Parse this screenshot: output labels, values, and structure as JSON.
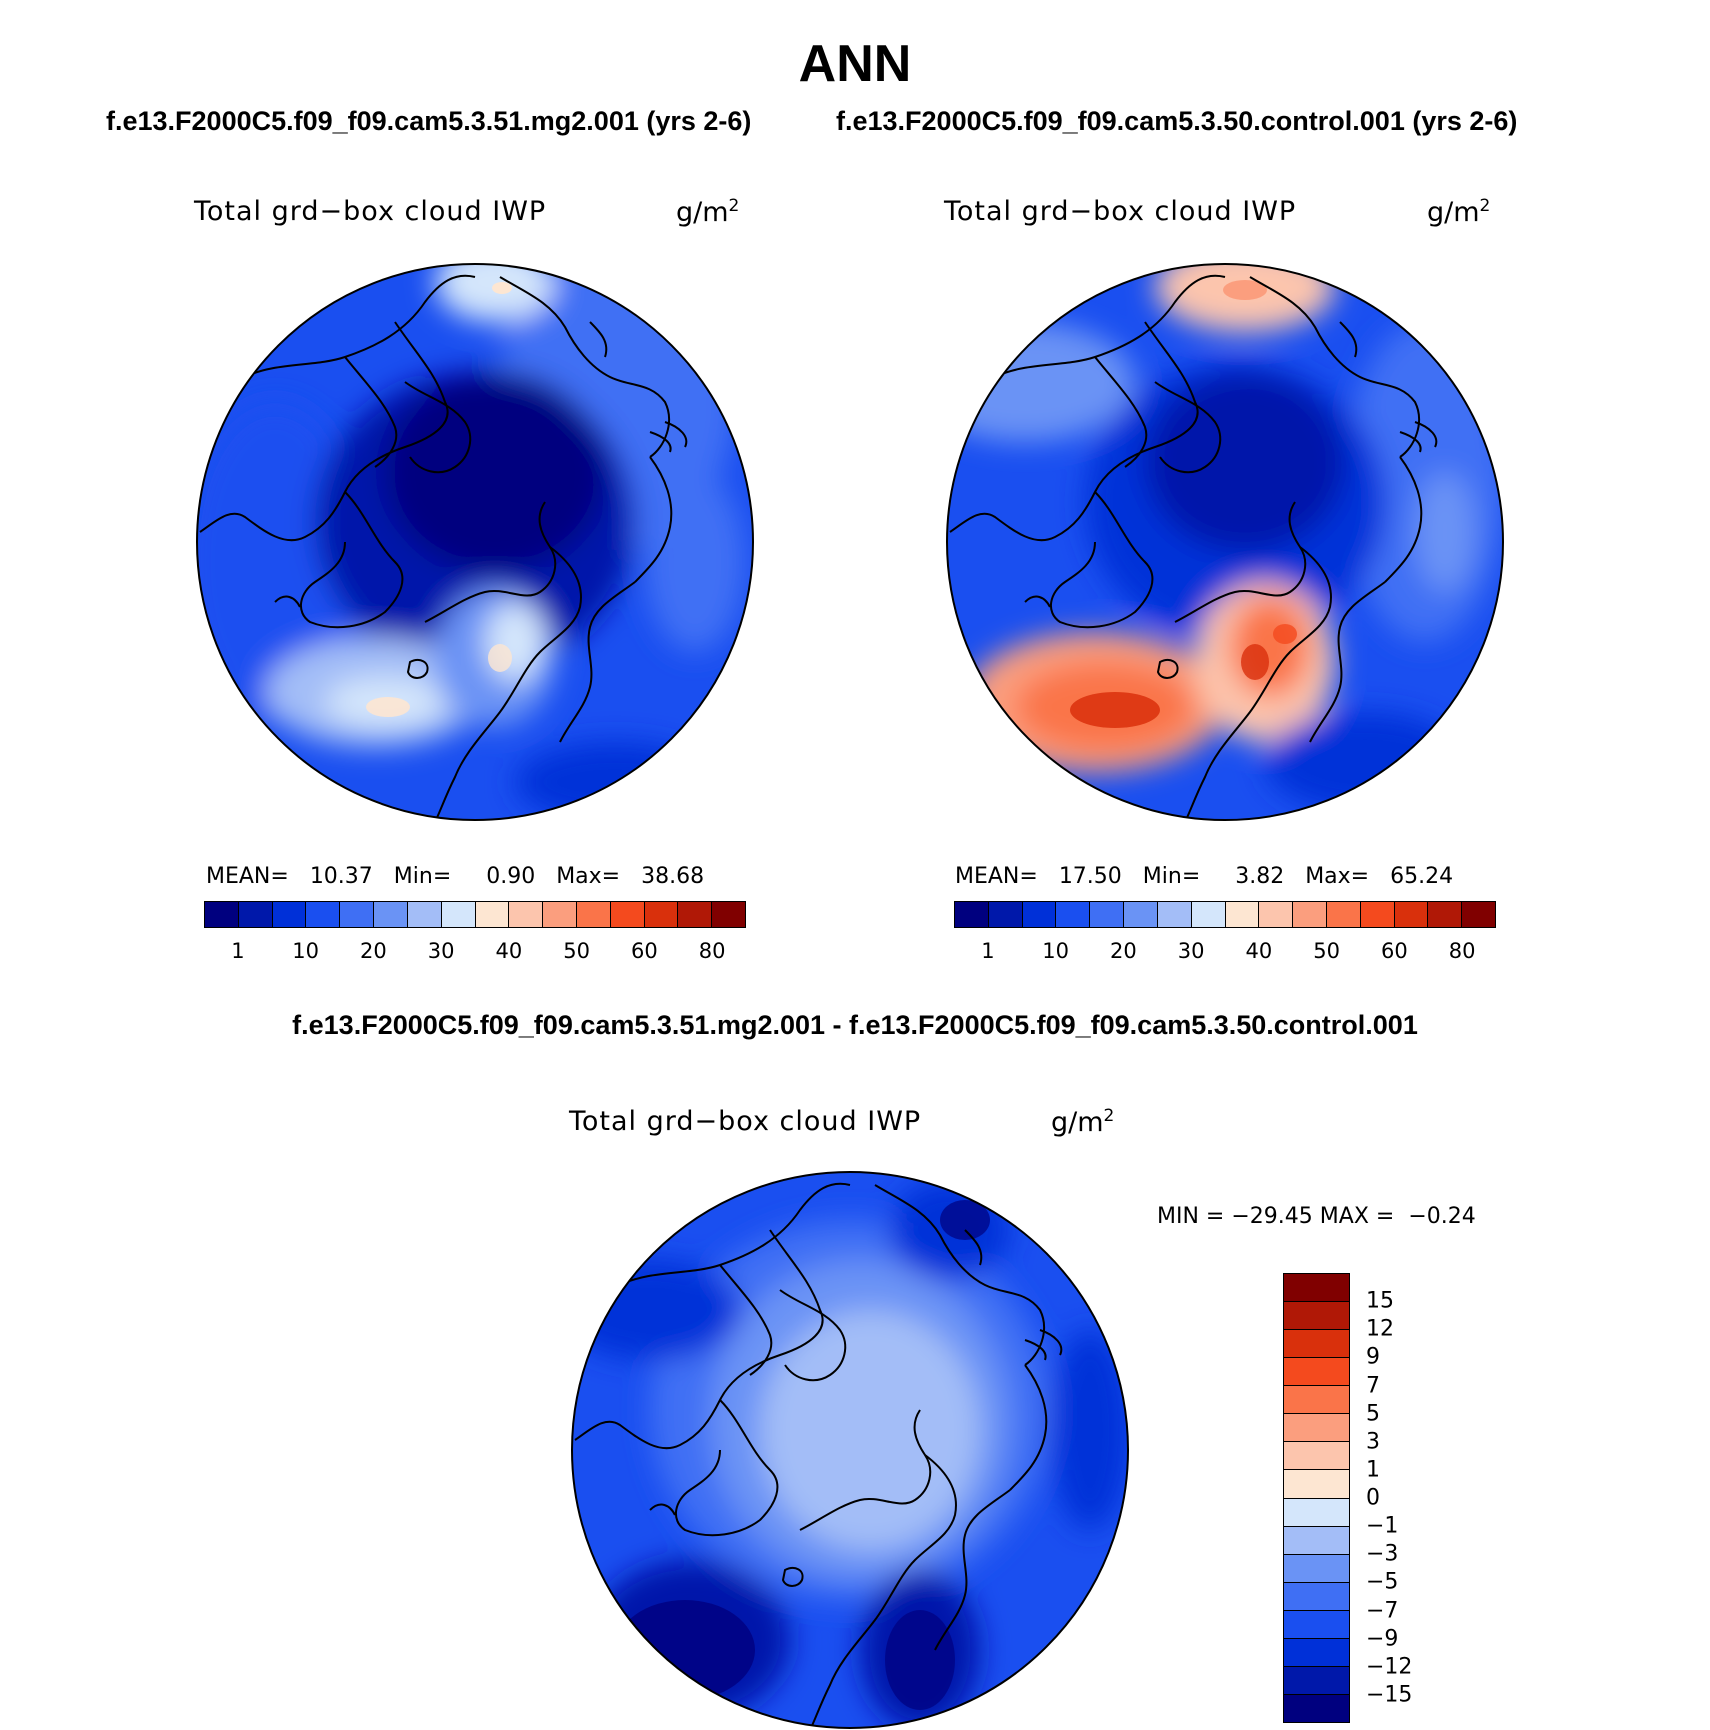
{
  "title": "ANN",
  "case1_title": "f.e13.F2000C5.f09_f09.cam5.3.51.mg2.001 (yrs 2-6)",
  "case2_title": "f.e13.F2000C5.f09_f09.cam5.3.50.control.001 (yrs 2-6)",
  "diff_title": "f.e13.F2000C5.f09_f09.cam5.3.51.mg2.001 - f.e13.F2000C5.f09_f09.cam5.3.50.control.001",
  "variable": "Total grd−box cloud IWP",
  "units_base": "g/m",
  "units_exp": "2",
  "panel1": {
    "mean_label": "MEAN=",
    "mean": "10.37",
    "min_label": "Min=",
    "min": "0.90",
    "max_label": "Max=",
    "max": "38.68"
  },
  "panel2": {
    "mean_label": "MEAN=",
    "mean": "17.50",
    "min_label": "Min=",
    "min": "3.82",
    "max_label": "Max=",
    "max": "65.24"
  },
  "diff_stats": {
    "min_label": "MIN =",
    "min": "−29.45",
    "max_label": "MAX =",
    "max": "−0.24"
  },
  "abs_colorbar": {
    "ticks": [
      "1",
      "10",
      "20",
      "30",
      "40",
      "50",
      "60",
      "80"
    ],
    "colors": [
      "#00007f",
      "#0018aa",
      "#0030d8",
      "#1a4ff0",
      "#3f6ff4",
      "#6a93f5",
      "#a3bdf7",
      "#d4e6fb",
      "#fde6d2",
      "#fcc5ad",
      "#fb9e7e",
      "#fa7449",
      "#f44a1e",
      "#d9300c",
      "#b01806",
      "#800000"
    ]
  },
  "diff_colorbar": {
    "ticks": [
      "15",
      "12",
      "9",
      "7",
      "5",
      "3",
      "1",
      "0",
      "−1",
      "−3",
      "−5",
      "−7",
      "−9",
      "−12",
      "−15"
    ],
    "colors": [
      "#800000",
      "#b01806",
      "#d9300c",
      "#f44a1e",
      "#fa7449",
      "#fb9e7e",
      "#fcc5ad",
      "#fde6d2",
      "#d4e6fb",
      "#a3bdf7",
      "#6a93f5",
      "#3f6ff4",
      "#1a4ff0",
      "#0030d8",
      "#0018aa",
      "#00007f"
    ]
  }
}
